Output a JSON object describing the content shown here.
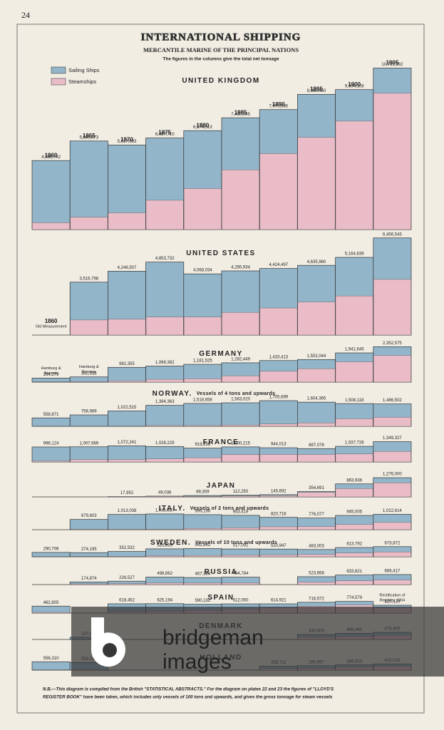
{
  "page_number": "24",
  "header": {
    "title": "INTERNATIONAL SHIPPING",
    "subtitle": "MERCANTILE MARINE OF THE PRINCIPAL NATIONS",
    "caption": "The figures in the columns give the total net tonnage"
  },
  "legend": [
    {
      "name": "Sailing Ships",
      "color": "#93b5c9"
    },
    {
      "name": "Steamships",
      "color": "#eabcc7"
    }
  ],
  "chart_data": [
    {
      "type": "bar",
      "title": "UNITED KINGDOM",
      "categories": [
        "1860",
        "1865",
        "1870",
        "1875",
        "1880",
        "1885",
        "1890",
        "1895",
        "1900",
        "1905"
      ],
      "values": [
        4586742,
        5886873,
        5617693,
        6087710,
        6574513,
        7430045,
        7975536,
        8988450,
        9304108,
        10735582
      ],
      "value_labels": [
        "4,586,742",
        "5,886,873",
        "5,617,693",
        "6,087,710",
        "6,574,513",
        "7,430,045",
        "7,975,536",
        "8,988,450",
        "9,304,108",
        "10,735,582"
      ],
      "steam_values": [
        454000,
        823000,
        1112000,
        1946000,
        2724000,
        3973000,
        5043000,
        6122000,
        7208000,
        9065000
      ]
    },
    {
      "type": "bar",
      "title": "UNITED STATES",
      "values": [
        null,
        3516798,
        4246507,
        4853732,
        4068034,
        4265934,
        4424497,
        4635960,
        5164839,
        6456543
      ],
      "value_labels": [
        null,
        "3,516,798",
        "4,246,507",
        "4,853,732",
        "4,068,034",
        "4,265,934",
        "4,424,497",
        "4,635,960",
        "5,164,839",
        "6,456,543"
      ],
      "steam_values": [
        null,
        1000000,
        1050000,
        1200000,
        1200000,
        1500000,
        1800000,
        2200000,
        2600000,
        3700000
      ],
      "column_notes": [
        [
          "1860",
          "Old Measurement"
        ],
        null,
        null,
        null,
        null,
        null,
        null,
        null,
        null,
        null
      ]
    },
    {
      "type": "bar",
      "title": "GERMANY",
      "values": [
        264279,
        345638,
        982355,
        1068382,
        1181525,
        1282449,
        1433413,
        1502044,
        1941645,
        2352575
      ],
      "value_labels": [
        "264,279",
        "345,638",
        "982,355",
        "1,068,382",
        "1,181,525",
        "1,282,449",
        "1,433,413",
        "1,502,044",
        "1,941,645",
        "2,352,575"
      ],
      "steam_values": [
        20000,
        30000,
        80000,
        180000,
        220000,
        420000,
        720000,
        890000,
        1350000,
        1770000
      ],
      "column_notes": [
        [
          "Hamburg &",
          "Bremen"
        ],
        [
          "Hamburg &",
          "Bremen"
        ],
        null,
        null,
        null,
        null,
        null,
        null,
        null,
        null
      ]
    },
    {
      "type": "bar",
      "title": "NORWAY.",
      "note": "Vessels of 4 tons and upwards",
      "values": [
        558871,
        756989,
        1022515,
        1394363,
        1518658,
        1563020,
        1705699,
        1604365,
        1508118,
        1486502
      ],
      "value_labels": [
        "558,871",
        "756,989",
        "1,022,515",
        "1,394,363",
        "1,518,658",
        "1,563,020",
        "1,705,699",
        "1,604,365",
        "1,508,118",
        "1,486,502"
      ],
      "steam_values": [
        10000,
        10000,
        10000,
        50000,
        50000,
        80000,
        150000,
        220000,
        500000,
        600000
      ]
    },
    {
      "type": "bar",
      "title": "FRANCE",
      "values": [
        996124,
        1007989,
        1072241,
        1028229,
        919298,
        1000215,
        944013,
        887078,
        1037726,
        1349327
      ],
      "value_labels": [
        "996,124",
        "1,007,989",
        "1,072,241",
        "1,028,229",
        "919,298",
        "1,000,215",
        "944,013",
        "887,078",
        "1,037,726",
        "1,349,327"
      ],
      "steam_values": [
        70000,
        150000,
        150000,
        200000,
        280000,
        490000,
        500000,
        500000,
        530000,
        700000
      ]
    },
    {
      "type": "bar",
      "title": "JAPAN",
      "values": [
        null,
        null,
        17952,
        49038,
        89309,
        112250,
        145692,
        354691,
        863936,
        1276000
      ],
      "value_labels": [
        null,
        null,
        "17,952",
        "49,038",
        "89,309",
        "112,250",
        "145,692",
        "354,691",
        "863,936",
        "1,276,000"
      ],
      "steam_values": [
        null,
        null,
        10000,
        40000,
        40000,
        60000,
        90000,
        300000,
        550000,
        930000
      ]
    },
    {
      "type": "bar",
      "title": "ITALY.",
      "note": "Vessels of 2 tons and upwards",
      "values": [
        null,
        679603,
        1013038,
        1045337,
        999196,
        953419,
        820716,
        776077,
        945005,
        1022614
      ],
      "value_labels": [
        null,
        "679,603",
        "1,013,038",
        "1,045,337",
        "999,196",
        "953,419",
        "820,716",
        "776,077",
        "945,005",
        "1,022,614"
      ],
      "steam_values": [
        null,
        30000,
        30000,
        30000,
        80000,
        120000,
        190000,
        200000,
        350000,
        480000
      ]
    },
    {
      "type": "bar",
      "title": "SWEDEN.",
      "note": "Vessels of 10 tons and upwards",
      "values": [
        290706,
        274195,
        352532,
        526839,
        542642,
        517091,
        510947,
        483003,
        613792,
        673872
      ],
      "value_labels": [
        "290,706",
        "274,195",
        "352,532",
        "526,839",
        "542,642",
        "517,091",
        "510,947",
        "483,003",
        "613,792",
        "673,872"
      ],
      "steam_values": [
        10000,
        20000,
        30000,
        70000,
        80000,
        100000,
        120000,
        150000,
        250000,
        320000
      ]
    },
    {
      "type": "bar",
      "title": "RUSSIA",
      "values": [
        null,
        174874,
        226527,
        498862,
        467384,
        494784,
        null,
        523668,
        633821,
        666417
      ],
      "value_labels": [
        null,
        "174,874",
        "226,527",
        "498,862",
        "467,384",
        "494,784",
        null,
        "523,668",
        "633,821",
        "666,417"
      ],
      "steam_values": [
        null,
        50000,
        60000,
        100000,
        100000,
        100000,
        null,
        160000,
        250000,
        300000
      ]
    },
    {
      "type": "bar",
      "title": "SPAIN",
      "values": [
        462805,
        null,
        618452,
        625194,
        590132,
        612050,
        614921,
        716572,
        774579,
        520429
      ],
      "value_labels": [
        "462,805",
        null,
        "618,452",
        "625,194",
        "590,132",
        "612,050",
        "614,921",
        "716,572",
        "774,579",
        "520,429"
      ],
      "steam_values": [
        50000,
        null,
        100000,
        120000,
        180000,
        270000,
        350000,
        460000,
        540000,
        350000
      ],
      "column_notes": [
        null,
        null,
        null,
        null,
        null,
        null,
        null,
        null,
        null,
        [
          "Rectification of",
          "Register, 1904"
        ]
      ]
    },
    {
      "type": "bar",
      "title": "DENMARK",
      "values": [
        null,
        147001,
        null,
        null,
        null,
        null,
        null,
        330003,
        408440,
        473400
      ],
      "value_labels": [
        null,
        "147,001",
        null,
        null,
        null,
        null,
        null,
        "330,003",
        "408,440",
        "473,400"
      ],
      "steam_values": [
        null,
        20000,
        null,
        null,
        null,
        null,
        null,
        150000,
        200000,
        270000
      ]
    },
    {
      "type": "bar",
      "title": "HOLLAND",
      "values": [
        556310,
        509046,
        null,
        null,
        null,
        null,
        255711,
        290657,
        346923,
        410015
      ],
      "value_labels": [
        "556,310",
        "509,046",
        null,
        null,
        null,
        null,
        "255,711",
        "290,657",
        "346,923",
        "410,015"
      ],
      "steam_values": [
        20000,
        30000,
        null,
        null,
        null,
        null,
        100000,
        130000,
        200000,
        250000
      ]
    }
  ],
  "footnote": [
    "N.B.—This diagram is compiled from the British \"STATISTICAL ABSTRACTS.\" For the diagram on plates 22 and 23 the figures of \"LLOYD'S",
    "REGISTER BOOK\" have been taken, which includes only vessels of 100 tons and upwards, and gives the gross tonnage for steam vessels"
  ],
  "watermark": [
    "bridgeman",
    "images"
  ]
}
